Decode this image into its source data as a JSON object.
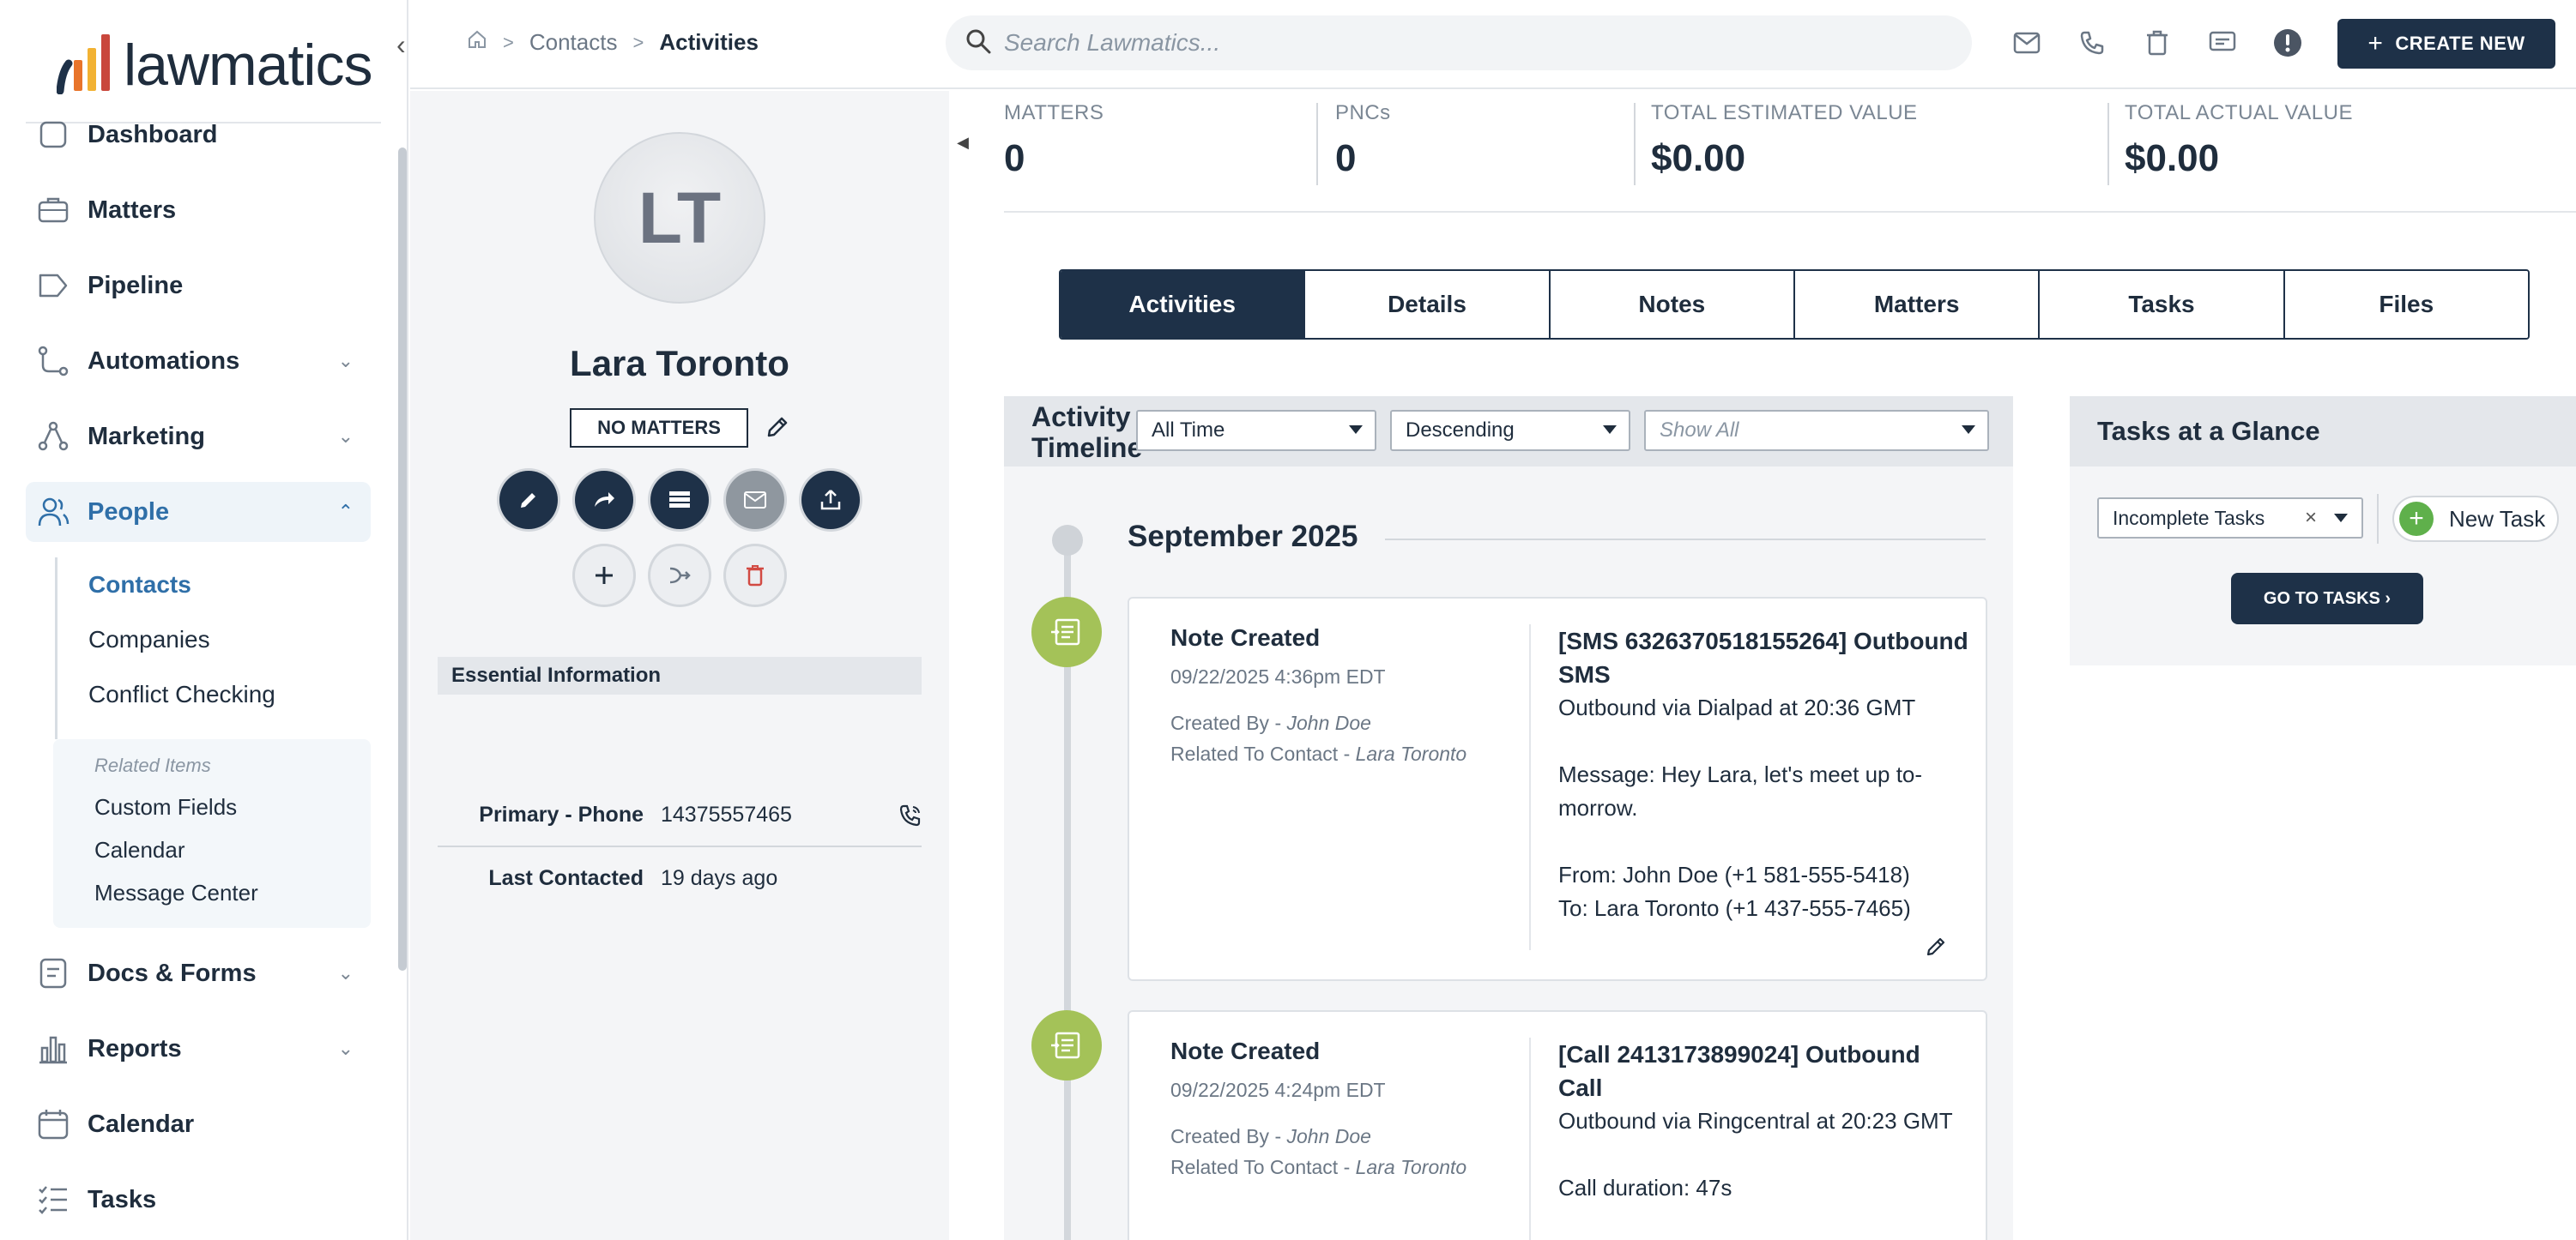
{
  "app": {
    "logo_text": "lawmatics",
    "colors": {
      "navy": "#1e3148",
      "accent_blue": "#2f6fa8",
      "green": "#a4c258",
      "logo_orange": "#e8742a",
      "logo_yellow": "#f2b233",
      "logo_red": "#c9473c"
    }
  },
  "sidebar": {
    "collapse_icon": "chevron-left-icon",
    "nav": {
      "dashboard": "Dashboard",
      "matters": "Matters",
      "pipeline": "Pipeline",
      "automations": "Automations",
      "marketing": "Marketing",
      "people": "People",
      "docs_forms": "Docs & Forms",
      "reports": "Reports",
      "calendar": "Calendar",
      "tasks": "Tasks"
    },
    "people_sub": {
      "contacts": "Contacts",
      "companies": "Companies",
      "conflict_checking": "Conflict Checking"
    },
    "related": {
      "title": "Related Items",
      "custom_fields": "Custom Fields",
      "calendar": "Calendar",
      "message_center": "Message Center"
    }
  },
  "topbar": {
    "breadcrumb": {
      "contacts": "Contacts",
      "current": "Activities"
    },
    "search_placeholder": "Search Lawmatics...",
    "create_new": "CREATE NEW"
  },
  "contact": {
    "initials": "LT",
    "name": "Lara Toronto",
    "matters_badge": "NO MATTERS",
    "essential_title": "Essential Information",
    "phone_label": "Primary - Phone",
    "phone_value": "14375557465",
    "last_contacted_label": "Last Contacted",
    "last_contacted_value": "19 days ago"
  },
  "stats": {
    "matters_label": "MATTERS",
    "matters_value": "0",
    "pncs_label": "PNCs",
    "pncs_value": "0",
    "est_label": "TOTAL ESTIMATED VALUE",
    "est_value": "$0.00",
    "actual_label": "TOTAL ACTUAL VALUE",
    "actual_value": "$0.00"
  },
  "tabs": [
    "Activities",
    "Details",
    "Notes",
    "Matters",
    "Tasks",
    "Files"
  ],
  "timeline": {
    "title": "Activity Timeline",
    "filter_time": "All Time",
    "filter_order": "Descending",
    "filter_type_placeholder": "Show All",
    "month": "September 2025",
    "entries": [
      {
        "title": "Note Created",
        "date": "09/22/2025 4:36pm EDT",
        "created_by_label": "Created By - ",
        "created_by": "John Doe",
        "related_label": "Related To Contact - ",
        "related": "Lara Toronto",
        "subject": "[SMS 6326370518155264] Outbound SMS",
        "line1": "Outbound via Dialpad at 20:36 GMT",
        "line2": "Message: Hey Lara, let's meet up to-morrow.",
        "line3": "From: John Doe (+1 581-555-5418)",
        "line4": "To: Lara Toronto (+1 437-555-7465)"
      },
      {
        "title": "Note Created",
        "date": "09/22/2025 4:24pm EDT",
        "created_by_label": "Created By - ",
        "created_by": "John Doe",
        "related_label": "Related To Contact - ",
        "related": "Lara Toronto",
        "subject": "[Call 2413173899024] Outbound Call",
        "line1": "Outbound via Ringcentral at 20:23 GMT",
        "line2": "Call duration: 47s"
      }
    ]
  },
  "tasks_glance": {
    "title": "Tasks at a Glance",
    "filter": "Incomplete Tasks",
    "new_task": "New Task",
    "go_to_tasks": "GO TO TASKS ›"
  }
}
